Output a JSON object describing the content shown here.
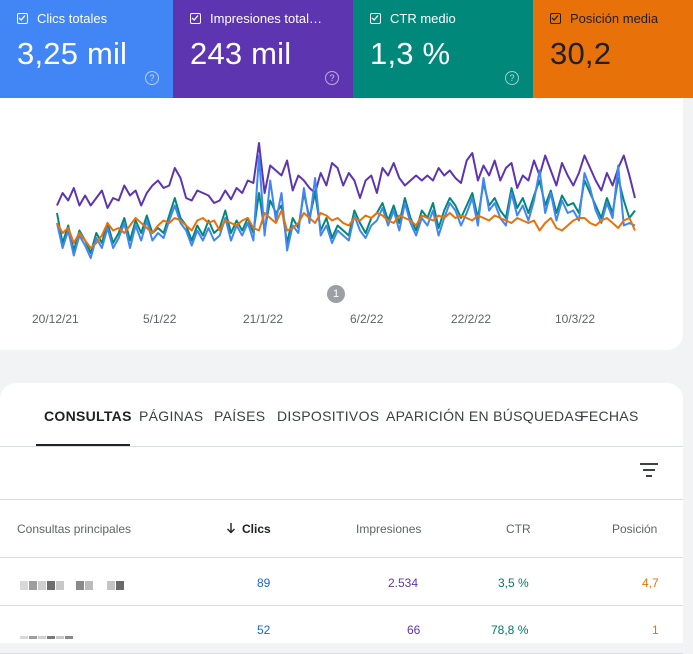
{
  "summary_cards": [
    {
      "label": "Clics totales",
      "value": "3,25 mil",
      "color": "#4285f4",
      "checked": true,
      "help": "?"
    },
    {
      "label": "Impresiones total…",
      "value": "243 mil",
      "color": "#5e35b1",
      "checked": true,
      "help": "?"
    },
    {
      "label": "CTR medio",
      "value": "1,3 %",
      "color": "#00897b",
      "checked": true,
      "help": "?"
    },
    {
      "label": "Posición media",
      "value": "30,2",
      "color": "#e8710a",
      "checked": true
    }
  ],
  "chart": {
    "x_labels": [
      "20/12/21",
      "5/1/22",
      "21/1/22",
      "6/2/22",
      "22/2/22",
      "10/3/22"
    ],
    "annotation": "1",
    "series_colors": {
      "impressions": "#5e35b1",
      "clicks": "#4285f4",
      "ctr": "#00897b",
      "position": "#e8710a"
    }
  },
  "chart_data": {
    "type": "line",
    "x_start": "14/12/21",
    "x_end": "27/3/22",
    "x_ticks": [
      "20/12/21",
      "5/1/22",
      "21/1/22",
      "6/2/22",
      "22/2/22",
      "10/3/22"
    ],
    "series": [
      {
        "key": "impressions",
        "values": [
          0.5,
          0.6,
          0.54,
          0.64,
          0.5,
          0.58,
          0.5,
          0.56,
          0.62,
          0.48,
          0.56,
          0.54,
          0.66,
          0.58,
          0.62,
          0.5,
          0.6,
          0.66,
          0.7,
          0.64,
          0.66,
          0.8,
          0.72,
          0.56,
          0.54,
          0.62,
          0.6,
          0.58,
          0.52,
          0.54,
          0.62,
          0.55,
          0.64,
          0.6,
          0.7,
          0.68,
          1.0,
          0.6,
          0.82,
          0.78,
          0.74,
          0.86,
          0.62,
          0.74,
          0.7,
          0.64,
          0.6,
          0.76,
          0.66,
          0.84,
          0.8,
          0.66,
          0.76,
          0.7,
          0.56,
          0.7,
          0.74,
          0.6,
          0.8,
          0.74,
          0.84,
          0.72,
          0.66,
          0.7,
          0.74,
          0.7,
          0.74,
          0.7,
          0.8,
          0.74,
          0.78,
          0.72,
          0.68,
          0.86,
          0.92,
          0.7,
          0.82,
          0.74,
          0.86,
          0.7,
          0.8,
          0.84,
          0.64,
          0.74,
          0.7,
          0.86,
          0.74,
          0.9,
          0.78,
          0.66,
          0.84,
          0.74,
          0.66,
          0.76,
          0.9,
          0.8,
          0.7,
          0.62,
          0.76,
          0.66,
          0.8,
          0.9,
          0.74,
          0.56
        ]
      },
      {
        "key": "ctr",
        "values": [
          0.44,
          0.2,
          0.34,
          0.14,
          0.3,
          0.22,
          0.12,
          0.28,
          0.2,
          0.36,
          0.2,
          0.28,
          0.4,
          0.22,
          0.38,
          0.28,
          0.42,
          0.28,
          0.32,
          0.28,
          0.42,
          0.56,
          0.4,
          0.34,
          0.22,
          0.34,
          0.26,
          0.38,
          0.28,
          0.32,
          0.46,
          0.28,
          0.38,
          0.3,
          0.4,
          0.28,
          0.6,
          0.3,
          0.54,
          0.44,
          0.5,
          0.2,
          0.4,
          0.32,
          0.6,
          0.4,
          0.6,
          0.3,
          0.4,
          0.24,
          0.34,
          0.3,
          0.26,
          0.46,
          0.36,
          0.28,
          0.4,
          0.44,
          0.52,
          0.38,
          0.5,
          0.36,
          0.56,
          0.4,
          0.3,
          0.46,
          0.4,
          0.52,
          0.32,
          0.46,
          0.56,
          0.5,
          0.4,
          0.5,
          0.6,
          0.4,
          0.68,
          0.5,
          0.56,
          0.46,
          0.4,
          0.64,
          0.48,
          0.56,
          0.44,
          0.58,
          0.7,
          0.5,
          0.62,
          0.44,
          0.58,
          0.5,
          0.52,
          0.44,
          0.7,
          0.6,
          0.5,
          0.4,
          0.56,
          0.44,
          0.72,
          0.54,
          0.4,
          0.46
        ]
      },
      {
        "key": "clicks",
        "values": [
          0.36,
          0.16,
          0.3,
          0.1,
          0.26,
          0.18,
          0.08,
          0.24,
          0.16,
          0.32,
          0.16,
          0.24,
          0.36,
          0.16,
          0.34,
          0.22,
          0.38,
          0.22,
          0.28,
          0.24,
          0.38,
          0.5,
          0.36,
          0.3,
          0.18,
          0.3,
          0.22,
          0.32,
          0.22,
          0.26,
          0.4,
          0.22,
          0.34,
          0.26,
          0.36,
          0.22,
          0.9,
          0.26,
          0.7,
          0.38,
          0.6,
          0.14,
          0.34,
          0.28,
          0.64,
          0.36,
          0.72,
          0.26,
          0.34,
          0.2,
          0.3,
          0.26,
          0.22,
          0.42,
          0.3,
          0.24,
          0.34,
          0.38,
          0.48,
          0.34,
          0.46,
          0.3,
          0.52,
          0.36,
          0.26,
          0.4,
          0.34,
          0.46,
          0.26,
          0.4,
          0.52,
          0.46,
          0.34,
          0.44,
          0.56,
          0.34,
          0.72,
          0.46,
          0.52,
          0.4,
          0.34,
          0.6,
          0.42,
          0.5,
          0.38,
          0.54,
          0.78,
          0.44,
          0.6,
          0.38,
          0.54,
          0.44,
          0.46,
          0.38,
          0.76,
          0.64,
          0.46,
          0.36,
          0.52,
          0.4,
          0.82,
          0.34,
          0.36,
          0.34
        ]
      },
      {
        "key": "position",
        "values": [
          0.36,
          0.28,
          0.32,
          0.2,
          0.28,
          0.22,
          0.16,
          0.2,
          0.26,
          0.36,
          0.3,
          0.32,
          0.28,
          0.34,
          0.4,
          0.36,
          0.32,
          0.28,
          0.34,
          0.38,
          0.36,
          0.4,
          0.38,
          0.34,
          0.3,
          0.38,
          0.4,
          0.36,
          0.38,
          0.3,
          0.38,
          0.36,
          0.34,
          0.38,
          0.4,
          0.32,
          0.3,
          0.44,
          0.4,
          0.36,
          0.46,
          0.3,
          0.32,
          0.36,
          0.44,
          0.4,
          0.36,
          0.44,
          0.42,
          0.38,
          0.4,
          0.36,
          0.34,
          0.4,
          0.38,
          0.42,
          0.4,
          0.44,
          0.42,
          0.38,
          0.36,
          0.42,
          0.4,
          0.38,
          0.34,
          0.42,
          0.4,
          0.38,
          0.42,
          0.4,
          0.44,
          0.4,
          0.42,
          0.4,
          0.38,
          0.42,
          0.4,
          0.38,
          0.42,
          0.4,
          0.38,
          0.36,
          0.4,
          0.38,
          0.36,
          0.38,
          0.3,
          0.36,
          0.4,
          0.32,
          0.3,
          0.34,
          0.38,
          0.4,
          0.4,
          0.36,
          0.34,
          0.38,
          0.4,
          0.36,
          0.32,
          0.38,
          0.4,
          0.3
        ]
      }
    ],
    "normalized": true,
    "grid": false,
    "legend": "cards-above"
  },
  "tabs": [
    {
      "label": "CONSULTAS",
      "active": true
    },
    {
      "label": "PÁGINAS"
    },
    {
      "label": "PAÍSES"
    },
    {
      "label": "DISPOSITIVOS"
    },
    {
      "label": "APARICIÓN EN BÚSQUEDAS"
    },
    {
      "label": "FECHAS"
    }
  ],
  "table": {
    "headers": {
      "query": "Consultas principales",
      "clicks": "Clics",
      "impressions": "Impresiones",
      "ctr": "CTR",
      "position": "Posición"
    },
    "sort_icon": "arrow-down-icon",
    "rows": [
      {
        "clicks": "89",
        "impressions": "2.534",
        "ctr": "3,5 %",
        "position": "4,7"
      },
      {
        "clicks": "52",
        "impressions": "66",
        "ctr": "78,8 %",
        "position": "1"
      }
    ]
  }
}
